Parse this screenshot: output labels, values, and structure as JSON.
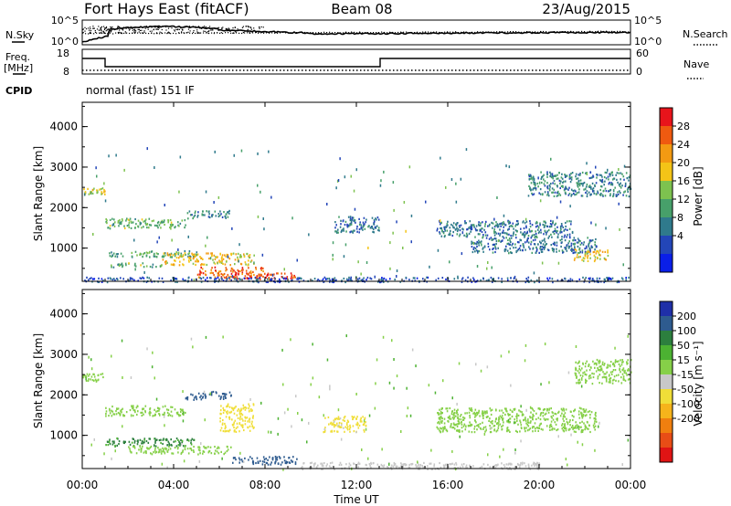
{
  "header": {
    "station": "Fort Hays East (fitACF)",
    "beam": "Beam 08",
    "date": "23/Aug/2015"
  },
  "summary": {
    "nsky_label": "N.Sky",
    "nsearch_label": "N.Search",
    "freq_label_1": "Freq.",
    "freq_label_2": "[MHz]",
    "nave_label": "Nave",
    "cpid_label": "CPID",
    "cpid_text": "normal (fast) 151 IF",
    "noise_ticks_left": [
      "10^5",
      "10^0"
    ],
    "noise_ticks_right": [
      "10^5",
      "10^0"
    ],
    "freq_ticks": [
      "18",
      "8"
    ],
    "nave_ticks": [
      "60",
      "0"
    ]
  },
  "colorbars": {
    "power": {
      "label": "Power [dB]",
      "ticks": [
        "28",
        "24",
        "20",
        "16",
        "12",
        "8",
        "4"
      ],
      "colors": [
        "#e8141b",
        "#ef5a10",
        "#f39a12",
        "#f4c417",
        "#7dc24f",
        "#47a06a",
        "#2f7a8c",
        "#2346b8",
        "#0a1fe8"
      ]
    },
    "velocity": {
      "label": "Velocity [m s⁻¹]",
      "ticks": [
        "200",
        "100",
        "50",
        "15",
        "-15",
        "-50",
        "-100",
        "-200"
      ],
      "colors": [
        "#1f2fa8",
        "#2e5b8f",
        "#2c7f3e",
        "#4cb232",
        "#86d048",
        "#c8c8c8",
        "#f0de38",
        "#f6b41b",
        "#f07f0f",
        "#e84d16",
        "#e01414"
      ]
    }
  },
  "chart_data": [
    {
      "type": "heatmap",
      "name": "Power",
      "xlabel": "",
      "ylabel": "Slant Range [km]",
      "x_range_hours": [
        0,
        24
      ],
      "ylim_km": [
        180,
        4600
      ],
      "yticks": [
        "1000",
        "2000",
        "3000",
        "4000"
      ],
      "xticks": [
        "00:00",
        "04:00",
        "08:00",
        "12:00",
        "16:00",
        "20:00",
        "00:00"
      ],
      "colorbar_range_db": [
        0,
        32
      ],
      "echo_regions": [
        {
          "t0": 0.0,
          "t1": 1.0,
          "r0": 2350,
          "r1": 2500,
          "value": 18
        },
        {
          "t0": 1.0,
          "t1": 4.5,
          "r0": 1500,
          "r1": 1750,
          "value": 14
        },
        {
          "t0": 4.5,
          "t1": 6.5,
          "r0": 1750,
          "r1": 1950,
          "value": 10
        },
        {
          "t0": 1.0,
          "t1": 5.0,
          "r0": 800,
          "r1": 950,
          "value": 12
        },
        {
          "t0": 3.5,
          "t1": 7.5,
          "r0": 600,
          "r1": 900,
          "value": 20
        },
        {
          "t0": 1.0,
          "t1": 3.5,
          "r0": 550,
          "r1": 650,
          "value": 14
        },
        {
          "t0": 5.0,
          "t1": 8.0,
          "r0": 300,
          "r1": 550,
          "value": 26
        },
        {
          "t0": 6.0,
          "t1": 9.5,
          "r0": 250,
          "r1": 400,
          "value": 28
        },
        {
          "t0": 0.0,
          "t1": 24.0,
          "r0": 180,
          "r1": 300,
          "value": 6
        },
        {
          "t0": 15.5,
          "t1": 21.5,
          "r0": 1300,
          "r1": 1700,
          "value": 9
        },
        {
          "t0": 17.0,
          "t1": 22.5,
          "r0": 900,
          "r1": 1300,
          "value": 8
        },
        {
          "t0": 21.5,
          "t1": 23.0,
          "r0": 700,
          "r1": 1000,
          "value": 20
        },
        {
          "t0": 19.5,
          "t1": 24.0,
          "r0": 2300,
          "r1": 2900,
          "value": 10
        },
        {
          "t0": 11.0,
          "t1": 13.0,
          "r0": 1400,
          "r1": 1800,
          "value": 8
        }
      ]
    },
    {
      "type": "heatmap",
      "name": "Velocity",
      "xlabel": "Time UT",
      "ylabel": "Slant Range [km]",
      "x_range_hours": [
        0,
        24
      ],
      "ylim_km": [
        180,
        4600
      ],
      "yticks": [
        "1000",
        "2000",
        "3000",
        "4000"
      ],
      "xticks": [
        "00:00",
        "04:00",
        "08:00",
        "12:00",
        "16:00",
        "20:00",
        "00:00"
      ],
      "echo_regions": [
        {
          "t0": 0.0,
          "t1": 1.0,
          "r0": 2350,
          "r1": 2550,
          "value": 0
        },
        {
          "t0": 1.0,
          "t1": 4.5,
          "r0": 1500,
          "r1": 1750,
          "value": 0
        },
        {
          "t0": 4.5,
          "t1": 6.5,
          "r0": 1900,
          "r1": 2100,
          "value": 150
        },
        {
          "t0": 6.0,
          "t1": 7.5,
          "r0": 1100,
          "r1": 1800,
          "value": -80
        },
        {
          "t0": 1.0,
          "t1": 5.0,
          "r0": 750,
          "r1": 950,
          "value": 60
        },
        {
          "t0": 2.0,
          "t1": 6.5,
          "r0": 550,
          "r1": 750,
          "value": 0
        },
        {
          "t0": 6.5,
          "t1": 9.5,
          "r0": 300,
          "r1": 500,
          "value": 180
        },
        {
          "t0": 9.5,
          "t1": 20.0,
          "r0": 180,
          "r1": 350,
          "value": -30
        },
        {
          "t0": 15.5,
          "t1": 22.5,
          "r0": 1100,
          "r1": 1700,
          "value": 0
        },
        {
          "t0": 21.5,
          "t1": 24.0,
          "r0": 2300,
          "r1": 2900,
          "value": 0
        },
        {
          "t0": 10.5,
          "t1": 12.5,
          "r0": 1100,
          "r1": 1500,
          "value": -60
        }
      ]
    }
  ]
}
